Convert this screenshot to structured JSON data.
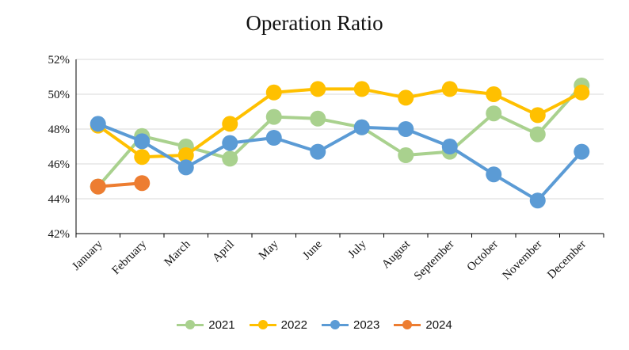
{
  "chart_data": {
    "type": "line",
    "title": "Operation Ratio",
    "xlabel": "",
    "ylabel": "",
    "categories": [
      "January",
      "February",
      "March",
      "April",
      "May",
      "June",
      "July",
      "August",
      "September",
      "October",
      "November",
      "December"
    ],
    "ylim": [
      42,
      52
    ],
    "yticks": [
      42,
      44,
      46,
      48,
      50,
      52
    ],
    "ytick_labels": [
      "42%",
      "44%",
      "46%",
      "48%",
      "50%",
      "52%"
    ],
    "grid": true,
    "legend_position": "bottom",
    "series": [
      {
        "name": "2021",
        "color": "#a9d18e",
        "values": [
          44.7,
          47.6,
          47.0,
          46.3,
          48.7,
          48.6,
          48.1,
          46.5,
          46.7,
          48.9,
          47.7,
          50.5
        ]
      },
      {
        "name": "2022",
        "color": "#ffc000",
        "values": [
          48.2,
          46.4,
          46.5,
          48.3,
          50.1,
          50.3,
          50.3,
          49.8,
          50.3,
          50.0,
          48.8,
          50.1
        ]
      },
      {
        "name": "2023",
        "color": "#5b9bd5",
        "values": [
          48.3,
          47.3,
          45.8,
          47.2,
          47.5,
          46.7,
          48.1,
          48.0,
          47.0,
          45.4,
          43.9,
          46.7
        ]
      },
      {
        "name": "2024",
        "color": "#ed7d31",
        "values": [
          44.7,
          44.9,
          null,
          null,
          null,
          null,
          null,
          null,
          null,
          null,
          null,
          null
        ]
      }
    ]
  }
}
